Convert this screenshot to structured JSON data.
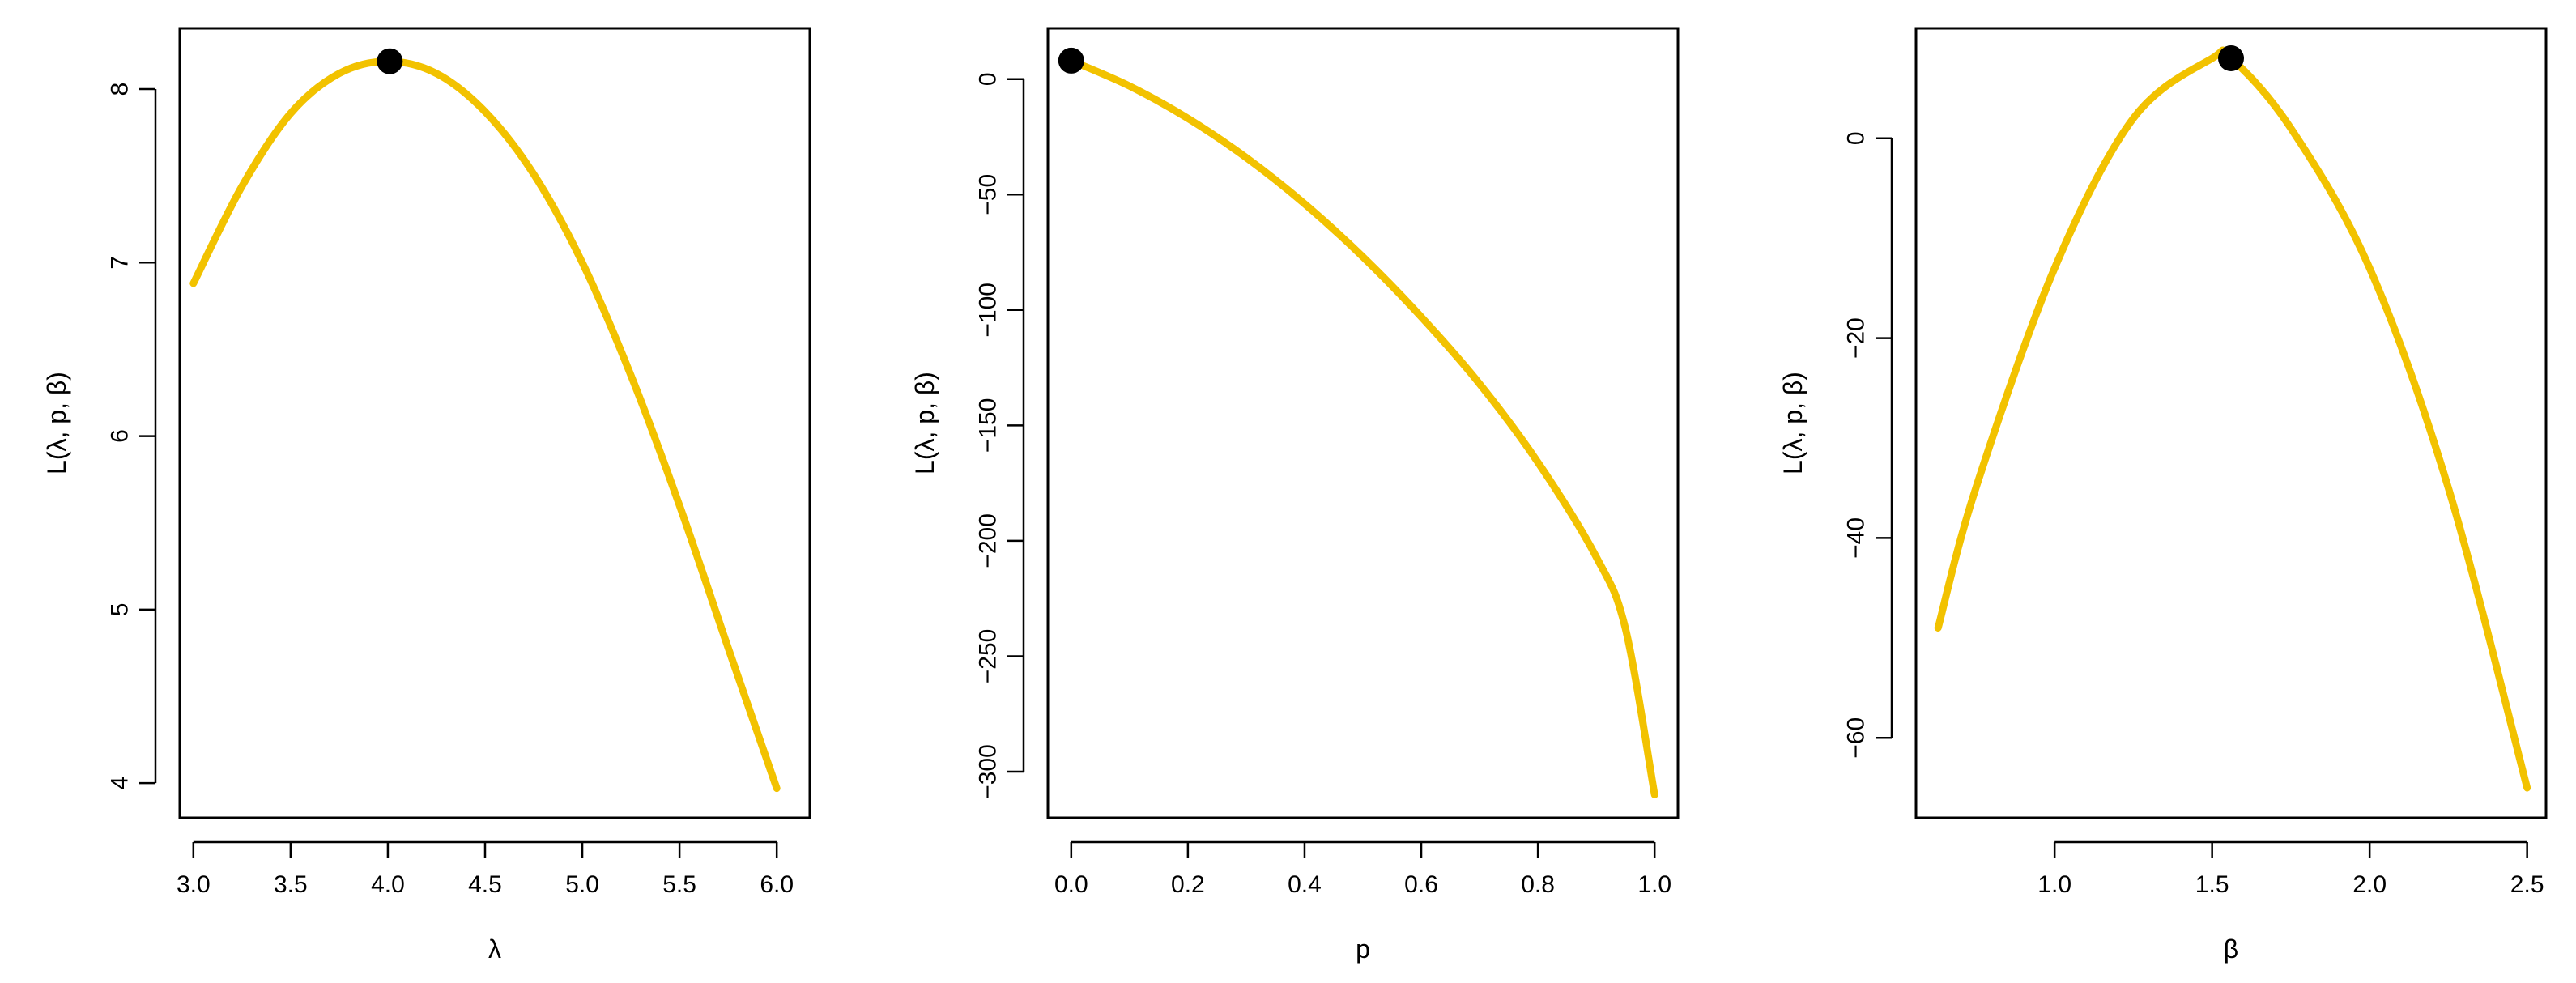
{
  "colors": {
    "curve": "#F2C200",
    "marker": "#000000",
    "axes": "#000000",
    "background": "#FFFFFF"
  },
  "chart_data": [
    {
      "type": "line",
      "title": "",
      "xlabel": "λ",
      "ylabel": "L(λ, p, β)",
      "xlim": [
        2.93,
        6.17
      ],
      "ylim": [
        3.8,
        8.35
      ],
      "xticks": [
        3.0,
        3.5,
        4.0,
        4.5,
        5.0,
        5.5,
        6.0
      ],
      "xtick_labels": [
        "3.0",
        "3.5",
        "4.0",
        "4.5",
        "5.0",
        "5.5",
        "6.0"
      ],
      "yticks": [
        4,
        5,
        6,
        7,
        8
      ],
      "ytick_labels": [
        "4",
        "5",
        "6",
        "7",
        "8"
      ],
      "grid": false,
      "series": [
        {
          "x": [
            3.0,
            3.25,
            3.5,
            3.75,
            4.0,
            4.25,
            4.5,
            4.75,
            5.0,
            5.25,
            5.5,
            5.75,
            6.0
          ],
          "y": [
            6.88,
            7.44,
            7.86,
            8.09,
            8.16,
            8.09,
            7.87,
            7.51,
            7.0,
            6.35,
            5.6,
            4.78,
            3.97
          ]
        }
      ],
      "maximum_point": {
        "x": 4.01,
        "y": 8.16
      }
    },
    {
      "type": "line",
      "title": "",
      "xlabel": "p",
      "ylabel": "L(λ, p, β)",
      "xlim": [
        -0.04,
        1.04
      ],
      "ylim": [
        -320,
        22
      ],
      "xticks": [
        0.0,
        0.2,
        0.4,
        0.6,
        0.8,
        1.0
      ],
      "xtick_labels": [
        "0.0",
        "0.2",
        "0.4",
        "0.6",
        "0.8",
        "1.0"
      ],
      "yticks": [
        0,
        -50,
        -100,
        -150,
        -200,
        -250,
        -300
      ],
      "ytick_labels": [
        "0",
        "−50",
        "−100",
        "−150",
        "−200",
        "−250",
        "−300"
      ],
      "grid": false,
      "series": [
        {
          "x": [
            0.0,
            0.1,
            0.2,
            0.3,
            0.4,
            0.5,
            0.6,
            0.7,
            0.8,
            0.9,
            0.95,
            1.0
          ],
          "y": [
            8,
            -3,
            -17,
            -34,
            -54,
            -77,
            -103,
            -132,
            -166,
            -207,
            -238,
            -310
          ]
        }
      ],
      "maximum_point": {
        "x": 0.0,
        "y": 8
      }
    },
    {
      "type": "line",
      "title": "",
      "xlabel": "β",
      "ylabel": "L(λ, p, β)",
      "xlim": [
        0.56,
        2.56
      ],
      "ylim": [
        -68,
        11
      ],
      "xticks": [
        1.0,
        1.5,
        2.0,
        2.5
      ],
      "xtick_labels": [
        "1.0",
        "1.5",
        "2.0",
        "2.5"
      ],
      "yticks": [
        0,
        -20,
        -40,
        -60
      ],
      "ytick_labels": [
        "0",
        "−20",
        "−40",
        "−60"
      ],
      "grid": false,
      "series": [
        {
          "x": [
            0.63,
            0.75,
            1.0,
            1.25,
            1.5,
            1.56,
            1.75,
            2.0,
            2.25,
            2.5
          ],
          "y": [
            -49,
            -35,
            -13,
            2,
            8,
            8,
            1,
            -13,
            -35,
            -65
          ]
        }
      ],
      "maximum_point": {
        "x": 1.56,
        "y": 8
      }
    }
  ]
}
